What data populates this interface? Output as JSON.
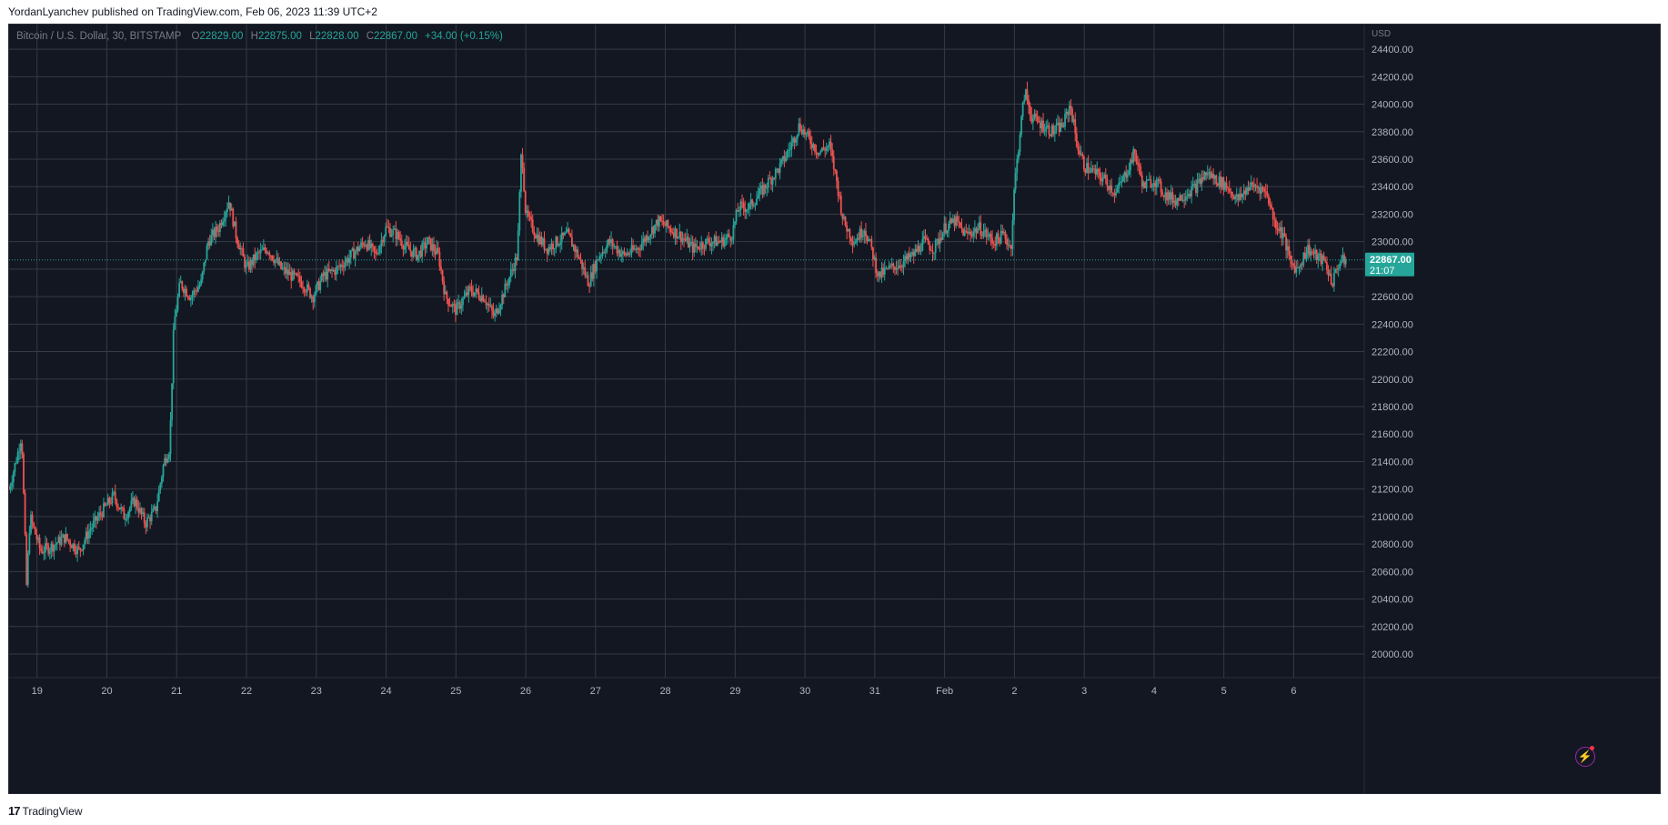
{
  "caption": "YordanLyanchev published on TradingView.com, Feb 06, 2023 11:39 UTC+2",
  "legend": {
    "symbol": "Bitcoin / U.S. Dollar, 30, BITSTAMP",
    "o_label": "O",
    "o": "22829.00",
    "h_label": "H",
    "h": "22875.00",
    "l_label": "L",
    "l": "22828.00",
    "c_label": "C",
    "c": "22867.00",
    "change": "+34.00 (+0.15%)"
  },
  "price_tag": {
    "price": "22867.00",
    "countdown": "21:07"
  },
  "footer": {
    "logo": "17",
    "brand": "TradingView"
  },
  "colors": {
    "up": "#26a69a",
    "down": "#ef5350",
    "background": "#131722",
    "grid": "#363a45"
  },
  "chart_data": {
    "type": "candlestick",
    "currency": "USD",
    "timeframe": "30",
    "ylim": [
      20000,
      24500
    ],
    "y_ticks": [
      "20000.00",
      "20200.00",
      "20400.00",
      "20600.00",
      "20800.00",
      "21000.00",
      "21200.00",
      "21400.00",
      "21600.00",
      "21800.00",
      "22000.00",
      "22200.00",
      "22400.00",
      "22600.00",
      "22800.00",
      "23000.00",
      "23200.00",
      "23400.00",
      "23600.00",
      "23800.00",
      "24000.00",
      "24200.00",
      "24400.00"
    ],
    "x_ticks": [
      "19",
      "20",
      "21",
      "22",
      "23",
      "24",
      "25",
      "26",
      "27",
      "28",
      "29",
      "30",
      "31",
      "Feb",
      "2",
      "3",
      "4",
      "5",
      "6"
    ],
    "x_start_day": 18.6,
    "x_end_day": 37.75,
    "last_price": 22867,
    "price_path": [
      [
        18.6,
        21200
      ],
      [
        18.72,
        21450
      ],
      [
        18.78,
        21600
      ],
      [
        18.85,
        20500
      ],
      [
        18.9,
        21000
      ],
      [
        19.05,
        20750
      ],
      [
        19.2,
        20780
      ],
      [
        19.4,
        20850
      ],
      [
        19.6,
        20750
      ],
      [
        19.75,
        20900
      ],
      [
        19.95,
        21050
      ],
      [
        20.1,
        21150
      ],
      [
        20.25,
        21000
      ],
      [
        20.4,
        21120
      ],
      [
        20.55,
        20950
      ],
      [
        20.7,
        21050
      ],
      [
        20.82,
        21400
      ],
      [
        20.9,
        21500
      ],
      [
        20.96,
        22400
      ],
      [
        21.05,
        22700
      ],
      [
        21.2,
        22600
      ],
      [
        21.35,
        22700
      ],
      [
        21.45,
        23000
      ],
      [
        21.6,
        23100
      ],
      [
        21.75,
        23300
      ],
      [
        21.85,
        23050
      ],
      [
        22.0,
        22800
      ],
      [
        22.15,
        22900
      ],
      [
        22.3,
        22950
      ],
      [
        22.5,
        22800
      ],
      [
        22.65,
        22750
      ],
      [
        22.8,
        22700
      ],
      [
        22.95,
        22600
      ],
      [
        23.1,
        22750
      ],
      [
        23.3,
        22800
      ],
      [
        23.5,
        22900
      ],
      [
        23.7,
        23000
      ],
      [
        23.85,
        22900
      ],
      [
        24.0,
        23100
      ],
      [
        24.15,
        23050
      ],
      [
        24.3,
        22950
      ],
      [
        24.45,
        22900
      ],
      [
        24.6,
        23000
      ],
      [
        24.75,
        22900
      ],
      [
        24.85,
        22600
      ],
      [
        25.0,
        22500
      ],
      [
        25.2,
        22650
      ],
      [
        25.4,
        22600
      ],
      [
        25.55,
        22450
      ],
      [
        25.7,
        22650
      ],
      [
        25.88,
        22900
      ],
      [
        25.94,
        23700
      ],
      [
        26.0,
        23200
      ],
      [
        26.15,
        23050
      ],
      [
        26.3,
        22950
      ],
      [
        26.45,
        23000
      ],
      [
        26.6,
        23050
      ],
      [
        26.75,
        22900
      ],
      [
        26.9,
        22700
      ],
      [
        27.05,
        22900
      ],
      [
        27.2,
        23000
      ],
      [
        27.4,
        22900
      ],
      [
        27.6,
        22950
      ],
      [
        27.75,
        23050
      ],
      [
        27.9,
        23150
      ],
      [
        28.05,
        23100
      ],
      [
        28.2,
        23050
      ],
      [
        28.4,
        22950
      ],
      [
        28.6,
        23000
      ],
      [
        28.8,
        23000
      ],
      [
        28.95,
        23050
      ],
      [
        29.05,
        23250
      ],
      [
        29.2,
        23250
      ],
      [
        29.35,
        23350
      ],
      [
        29.5,
        23450
      ],
      [
        29.65,
        23550
      ],
      [
        29.8,
        23700
      ],
      [
        29.92,
        23850
      ],
      [
        30.05,
        23750
      ],
      [
        30.2,
        23650
      ],
      [
        30.35,
        23700
      ],
      [
        30.45,
        23450
      ],
      [
        30.55,
        23150
      ],
      [
        30.7,
        23000
      ],
      [
        30.85,
        23100
      ],
      [
        30.95,
        22950
      ],
      [
        31.05,
        22750
      ],
      [
        31.2,
        22800
      ],
      [
        31.4,
        22850
      ],
      [
        31.55,
        22900
      ],
      [
        31.7,
        23000
      ],
      [
        31.85,
        22950
      ],
      [
        32.0,
        23100
      ],
      [
        32.15,
        23150
      ],
      [
        32.3,
        23050
      ],
      [
        32.5,
        23100
      ],
      [
        32.7,
        23000
      ],
      [
        32.85,
        23050
      ],
      [
        32.95,
        22950
      ],
      [
        33.0,
        23400
      ],
      [
        33.08,
        23800
      ],
      [
        33.15,
        24100
      ],
      [
        33.25,
        23900
      ],
      [
        33.4,
        23850
      ],
      [
        33.55,
        23800
      ],
      [
        33.7,
        23850
      ],
      [
        33.8,
        24000
      ],
      [
        33.9,
        23700
      ],
      [
        34.0,
        23550
      ],
      [
        34.15,
        23500
      ],
      [
        34.3,
        23450
      ],
      [
        34.45,
        23350
      ],
      [
        34.6,
        23500
      ],
      [
        34.72,
        23650
      ],
      [
        34.85,
        23400
      ],
      [
        35.0,
        23450
      ],
      [
        35.15,
        23350
      ],
      [
        35.3,
        23300
      ],
      [
        35.45,
        23350
      ],
      [
        35.6,
        23400
      ],
      [
        35.75,
        23500
      ],
      [
        35.9,
        23450
      ],
      [
        36.05,
        23400
      ],
      [
        36.2,
        23300
      ],
      [
        36.35,
        23400
      ],
      [
        36.5,
        23400
      ],
      [
        36.62,
        23350
      ],
      [
        36.72,
        23150
      ],
      [
        36.85,
        23050
      ],
      [
        36.95,
        22850
      ],
      [
        37.05,
        22800
      ],
      [
        37.2,
        22950
      ],
      [
        37.3,
        22900
      ],
      [
        37.45,
        22850
      ],
      [
        37.55,
        22700
      ],
      [
        37.65,
        22850
      ],
      [
        37.75,
        22867
      ]
    ]
  }
}
